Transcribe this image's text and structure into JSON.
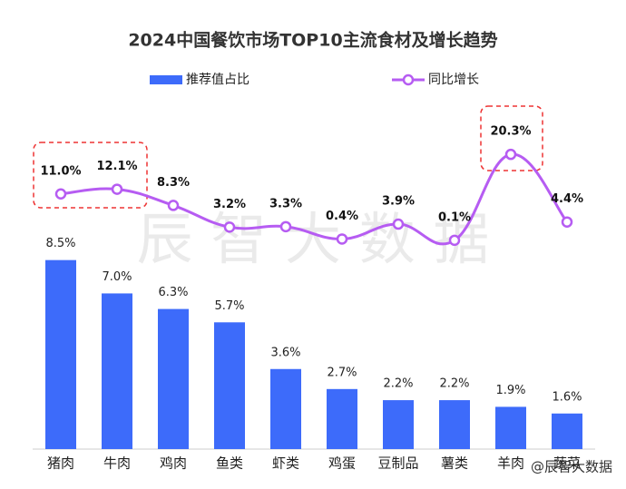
{
  "chart_data": {
    "type": "bar_line",
    "title": "2024中国餐饮市场TOP10主流食材及增长趋势",
    "categories": [
      "猪肉",
      "牛肉",
      "鸡肉",
      "鱼类",
      "虾类",
      "鸡蛋",
      "豆制品",
      "薯类",
      "羊肉",
      "蔬菜"
    ],
    "series": [
      {
        "name": "推荐值占比",
        "type": "bar",
        "color": "#3d6bfa",
        "values": [
          8.5,
          7.0,
          6.3,
          5.7,
          3.6,
          2.7,
          2.2,
          2.2,
          1.9,
          1.6
        ],
        "value_labels": [
          "8.5%",
          "7.0%",
          "6.3%",
          "5.7%",
          "3.6%",
          "2.7%",
          "2.2%",
          "2.2%",
          "1.9%",
          "1.6%"
        ]
      },
      {
        "name": "同比增长",
        "type": "line",
        "axis": "y2",
        "color": "#b65cf2",
        "values": [
          11.0,
          12.1,
          8.3,
          3.2,
          3.3,
          0.4,
          3.9,
          0.1,
          20.3,
          4.4
        ],
        "value_labels": [
          "11.0%",
          "12.1%",
          "8.3%",
          "3.2%",
          "3.3%",
          "0.4%",
          "3.9%",
          "0.1%",
          "20.3%",
          "4.4%"
        ]
      }
    ],
    "ylim": [
      0,
      15.3
    ],
    "y2lim": [
      -49,
      31
    ],
    "grid": false,
    "watermark": "辰 智 大 数 据",
    "credit": "@辰智大数据"
  }
}
